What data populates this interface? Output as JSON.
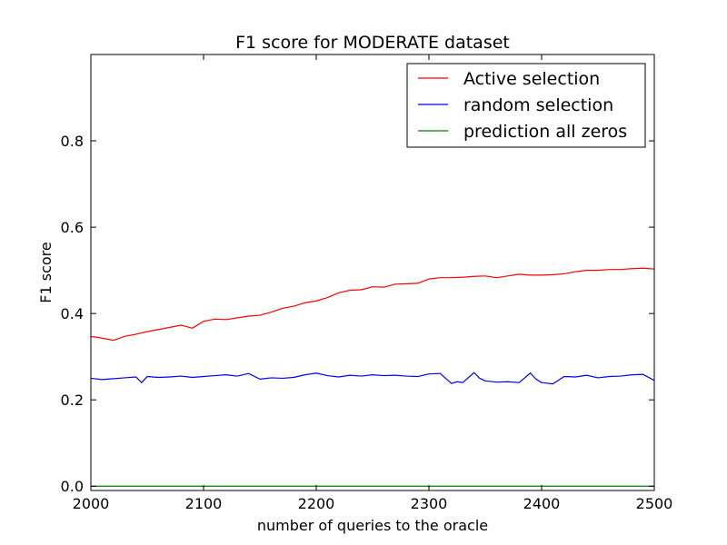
{
  "chart_data": {
    "type": "line",
    "title": "F1 score for MODERATE dataset",
    "xlabel": "number of queries to the oracle",
    "ylabel": "F1 score",
    "xlim": [
      2000,
      2500
    ],
    "ylim": [
      -0.01,
      1.0
    ],
    "xticks": [
      2000,
      2100,
      2200,
      2300,
      2400,
      2500
    ],
    "yticks": [
      0.0,
      0.2,
      0.4,
      0.6,
      0.8
    ],
    "xtick_labels": [
      "2000",
      "2100",
      "2200",
      "2300",
      "2400",
      "2500"
    ],
    "ytick_labels": [
      "0.0",
      "0.2",
      "0.4",
      "0.6",
      "0.8"
    ],
    "grid": false,
    "legend_position": "top-right",
    "series": [
      {
        "name": "Active selection",
        "color": "#ff0000",
        "x": [
          2000,
          2010,
          2020,
          2030,
          2040,
          2050,
          2060,
          2070,
          2080,
          2090,
          2100,
          2110,
          2120,
          2130,
          2140,
          2150,
          2160,
          2170,
          2180,
          2190,
          2200,
          2210,
          2220,
          2230,
          2240,
          2250,
          2260,
          2270,
          2280,
          2290,
          2300,
          2310,
          2320,
          2330,
          2340,
          2350,
          2360,
          2370,
          2380,
          2390,
          2400,
          2410,
          2420,
          2430,
          2440,
          2450,
          2460,
          2470,
          2480,
          2490,
          2500
        ],
        "y": [
          0.347,
          0.343,
          0.338,
          0.347,
          0.352,
          0.358,
          0.363,
          0.368,
          0.373,
          0.366,
          0.382,
          0.387,
          0.386,
          0.39,
          0.394,
          0.396,
          0.403,
          0.412,
          0.417,
          0.425,
          0.429,
          0.437,
          0.448,
          0.454,
          0.455,
          0.462,
          0.461,
          0.468,
          0.469,
          0.47,
          0.48,
          0.483,
          0.483,
          0.484,
          0.486,
          0.487,
          0.483,
          0.487,
          0.491,
          0.489,
          0.489,
          0.49,
          0.492,
          0.497,
          0.5,
          0.5,
          0.502,
          0.502,
          0.504,
          0.505,
          0.503
        ]
      },
      {
        "name": "random selection",
        "color": "#0000ff",
        "x": [
          2000,
          2010,
          2020,
          2030,
          2040,
          2045,
          2050,
          2060,
          2070,
          2080,
          2090,
          2100,
          2110,
          2120,
          2130,
          2140,
          2150,
          2160,
          2170,
          2180,
          2190,
          2200,
          2210,
          2220,
          2230,
          2240,
          2250,
          2260,
          2270,
          2280,
          2290,
          2300,
          2310,
          2320,
          2325,
          2330,
          2340,
          2345,
          2350,
          2360,
          2370,
          2380,
          2390,
          2395,
          2400,
          2410,
          2420,
          2430,
          2440,
          2450,
          2460,
          2470,
          2480,
          2490,
          2500
        ],
        "y": [
          0.25,
          0.247,
          0.249,
          0.251,
          0.253,
          0.24,
          0.254,
          0.252,
          0.253,
          0.255,
          0.252,
          0.254,
          0.256,
          0.258,
          0.255,
          0.261,
          0.248,
          0.251,
          0.25,
          0.252,
          0.258,
          0.262,
          0.256,
          0.253,
          0.257,
          0.255,
          0.258,
          0.256,
          0.257,
          0.255,
          0.254,
          0.26,
          0.261,
          0.238,
          0.242,
          0.24,
          0.263,
          0.25,
          0.244,
          0.241,
          0.242,
          0.24,
          0.262,
          0.248,
          0.24,
          0.237,
          0.254,
          0.253,
          0.257,
          0.251,
          0.254,
          0.255,
          0.258,
          0.259,
          0.245
        ]
      },
      {
        "name": "prediction all zeros",
        "color": "#008000",
        "x": [
          2000,
          2500
        ],
        "y": [
          0.0,
          0.0
        ]
      }
    ]
  }
}
